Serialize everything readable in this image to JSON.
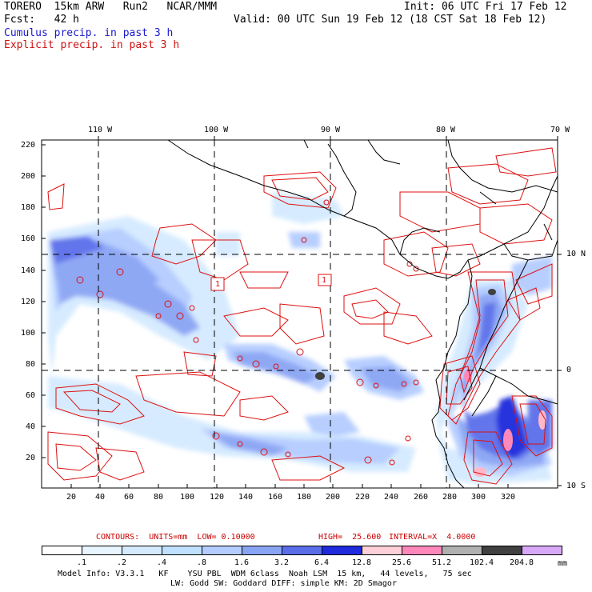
{
  "header": {
    "model": "TORERO  15km ARW   Run2   NCAR/MMM",
    "init": "Init: 06 UTC Fri 17 Feb 12",
    "fcst": "Fcst:   42 h",
    "valid": "Valid: 00 UTC Sun 19 Feb 12 (18 CST Sat 18 Feb 12)",
    "cumulus": "Cumulus precip. in past 3 h",
    "explicit": "Explicit precip. in past 3 h"
  },
  "axes": {
    "lon_labels": [
      "110 W",
      "100 W",
      "90 W",
      "80 W",
      "70 W"
    ],
    "lat_labels": [
      "10 N",
      "0",
      "10 S"
    ],
    "y_ticks": [
      "220",
      "200",
      "180",
      "160",
      "140",
      "120",
      "100",
      "80",
      "60",
      "40",
      "20"
    ],
    "x_ticks": [
      "20",
      "40",
      "60",
      "80",
      "100",
      "120",
      "140",
      "160",
      "180",
      "200",
      "220",
      "240",
      "260",
      "280",
      "300",
      "320"
    ]
  },
  "contours": {
    "label_units": "CONTOURS:  UNITS=mm  LOW= 0.10000",
    "label_high": "HIGH=  25.600",
    "label_interval": "INTERVAL=X  4.0000",
    "box_label": "1"
  },
  "legend": {
    "labels": [
      ".1",
      ".2",
      ".4",
      ".8",
      "1.6",
      "3.2",
      "6.4",
      "12.8",
      "25.6",
      "51.2",
      "102.4",
      "204.8"
    ],
    "units": "mm",
    "colors": [
      "#ffffff",
      "#e8f4ff",
      "#d4eaff",
      "#c0e0ff",
      "#b4ccff",
      "#8aa4f4",
      "#5a6eea",
      "#1e2adc",
      "#ffd0d8",
      "#ff88bb",
      "#b0b0b0",
      "#404040",
      "#d8a8f8"
    ]
  },
  "model_info": {
    "line1": "Model Info: V3.3.1   KF    YSU PBL  WDM 6class  Noah LSM  15 km,   44 levels,   75 sec",
    "line2": "LW: Godd SW: Goddard DIFF: simple KM: 2D Smagor"
  },
  "colors": {
    "cumulus_text": "#1a1acc",
    "explicit_text": "#d01010",
    "contour_line": "#dd1111",
    "coast": "#000000"
  }
}
